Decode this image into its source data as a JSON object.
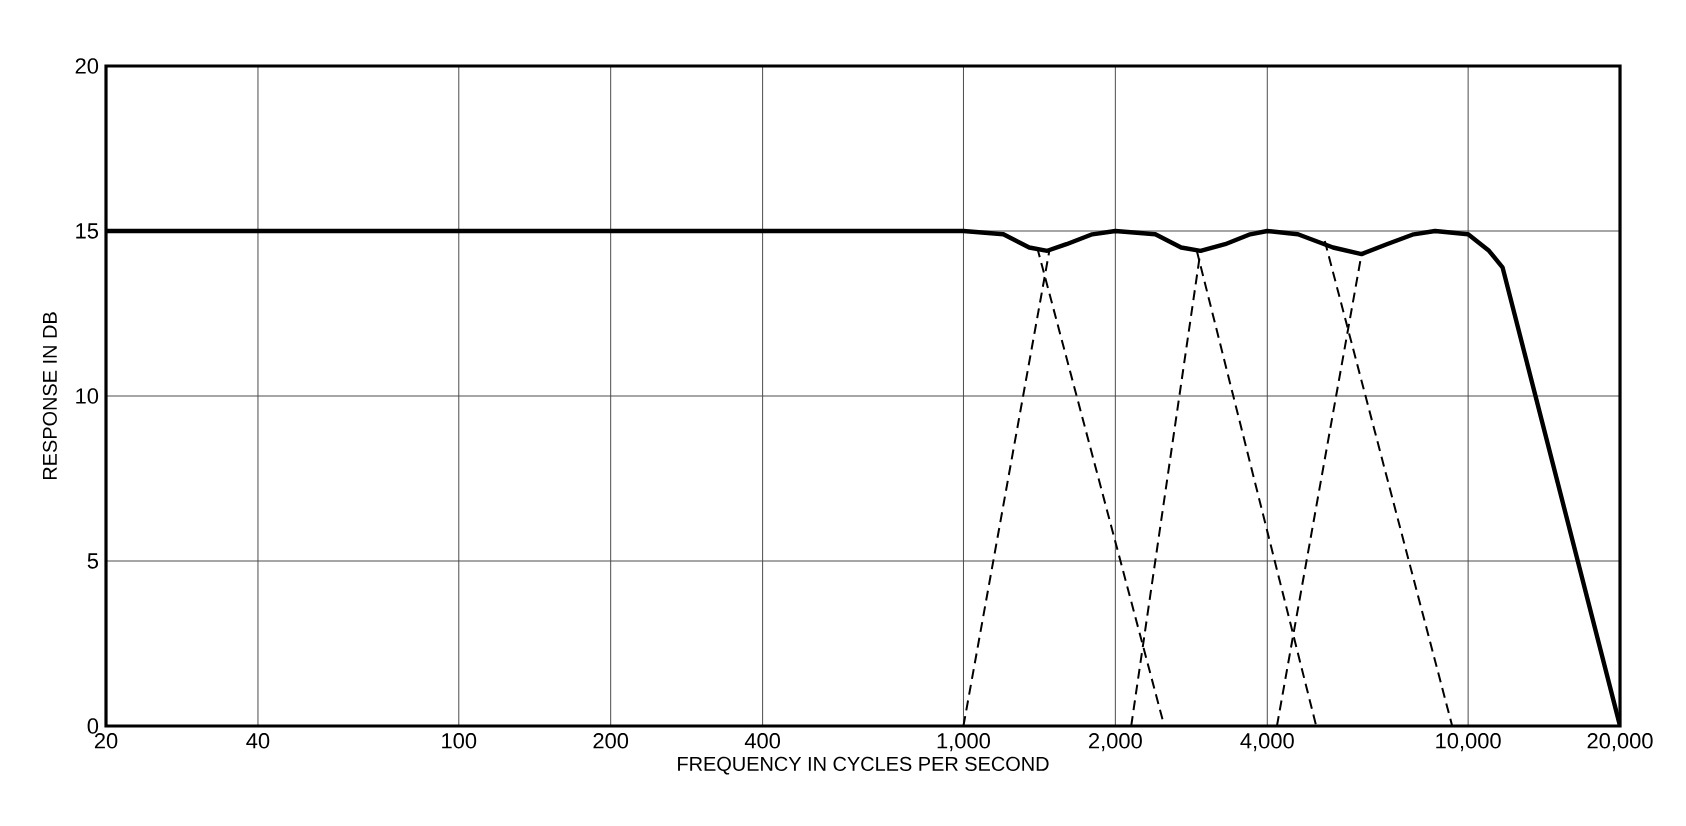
{
  "chart_data": {
    "type": "line",
    "xlabel": "FREQUENCY IN CYCLES PER SECOND",
    "ylabel": "RESPONSE IN DB",
    "log": "x",
    "grid": true,
    "legend": false,
    "xlim": [
      20,
      20000
    ],
    "ylim": [
      0,
      20
    ],
    "xticks": [
      20,
      40,
      100,
      200,
      400,
      {
        "value": 1000,
        "label": "1,000"
      },
      {
        "value": 2000,
        "label": "2,000"
      },
      {
        "value": 4000,
        "label": "4,000"
      },
      {
        "value": 10000,
        "label": "10,000"
      },
      {
        "value": 20000,
        "label": "20,000"
      }
    ],
    "yticks": [
      0,
      5,
      10,
      15,
      20
    ],
    "series": [
      {
        "color": "#000000",
        "line_style": "solid",
        "x": [
          20,
          1000,
          1200,
          1350,
          1466,
          1600,
          1800,
          2000,
          2400,
          2700,
          2950,
          3300,
          3700,
          4000,
          4600,
          5400,
          6150,
          6900,
          7800,
          8600,
          10000,
          11000,
          11700,
          20000
        ],
        "values": [
          15,
          15,
          14.9,
          14.5,
          14.4,
          14.6,
          14.9,
          15,
          14.9,
          14.5,
          14.4,
          14.6,
          14.9,
          15,
          14.9,
          14.5,
          14.3,
          14.6,
          14.9,
          15,
          14.9,
          14.4,
          13.9,
          0
        ]
      },
      {
        "color": "#000000",
        "line_style": "dashed",
        "x": [
          1400,
          2500
        ],
        "values": [
          14.5,
          0
        ]
      },
      {
        "color": "#000000",
        "line_style": "dashed",
        "x": [
          1000,
          1480
        ],
        "values": [
          0,
          14.4
        ]
      },
      {
        "color": "#000000",
        "line_style": "dashed",
        "x": [
          2150,
          2950
        ],
        "values": [
          0,
          14.4
        ]
      },
      {
        "color": "#000000",
        "line_style": "dashed",
        "x": [
          2900,
          5000
        ],
        "values": [
          14.4,
          0
        ]
      },
      {
        "color": "#000000",
        "line_style": "dashed",
        "x": [
          4180,
          6150
        ],
        "values": [
          0,
          14.3
        ]
      },
      {
        "color": "#000000",
        "line_style": "dashed",
        "x": [
          5200,
          9300
        ],
        "values": [
          14.7,
          0
        ]
      }
    ]
  }
}
